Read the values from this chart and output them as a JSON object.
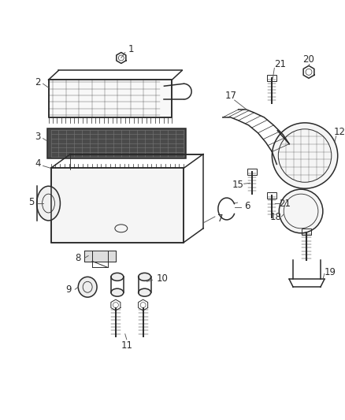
{
  "bg_color": "#ffffff",
  "line_color": "#2a2a2a",
  "label_color": "#2a2a2a",
  "fig_w": 4.38,
  "fig_h": 5.33
}
